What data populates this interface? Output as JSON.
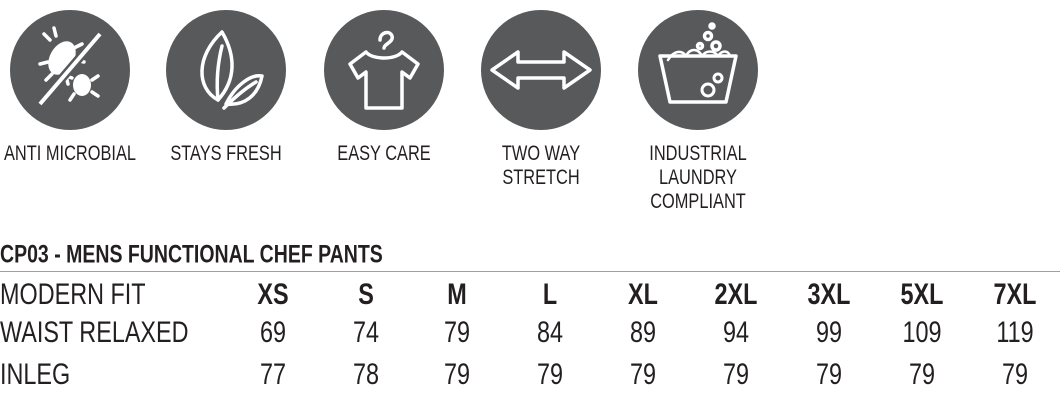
{
  "features": [
    {
      "label": [
        "ANTI MICROBIAL"
      ]
    },
    {
      "label": [
        "STAYS FRESH"
      ]
    },
    {
      "label": [
        "EASY CARE"
      ]
    },
    {
      "label": [
        "TWO WAY",
        "STRETCH"
      ]
    },
    {
      "label": [
        "INDUSTRIAL",
        "LAUNDRY",
        "COMPLIANT"
      ]
    }
  ],
  "table": {
    "title": "CP03 - MENS FUNCTIONAL CHEF PANTS",
    "header": [
      "MODERN FIT",
      "XS",
      "S",
      "M",
      "L",
      "XL",
      "2XL",
      "3XL",
      "5XL",
      "7XL"
    ],
    "rows": [
      [
        "WAIST RELAXED",
        69,
        74,
        79,
        84,
        89,
        94,
        99,
        109,
        119
      ],
      [
        "INLEG",
        77,
        78,
        79,
        79,
        79,
        79,
        79,
        79,
        79
      ]
    ]
  }
}
